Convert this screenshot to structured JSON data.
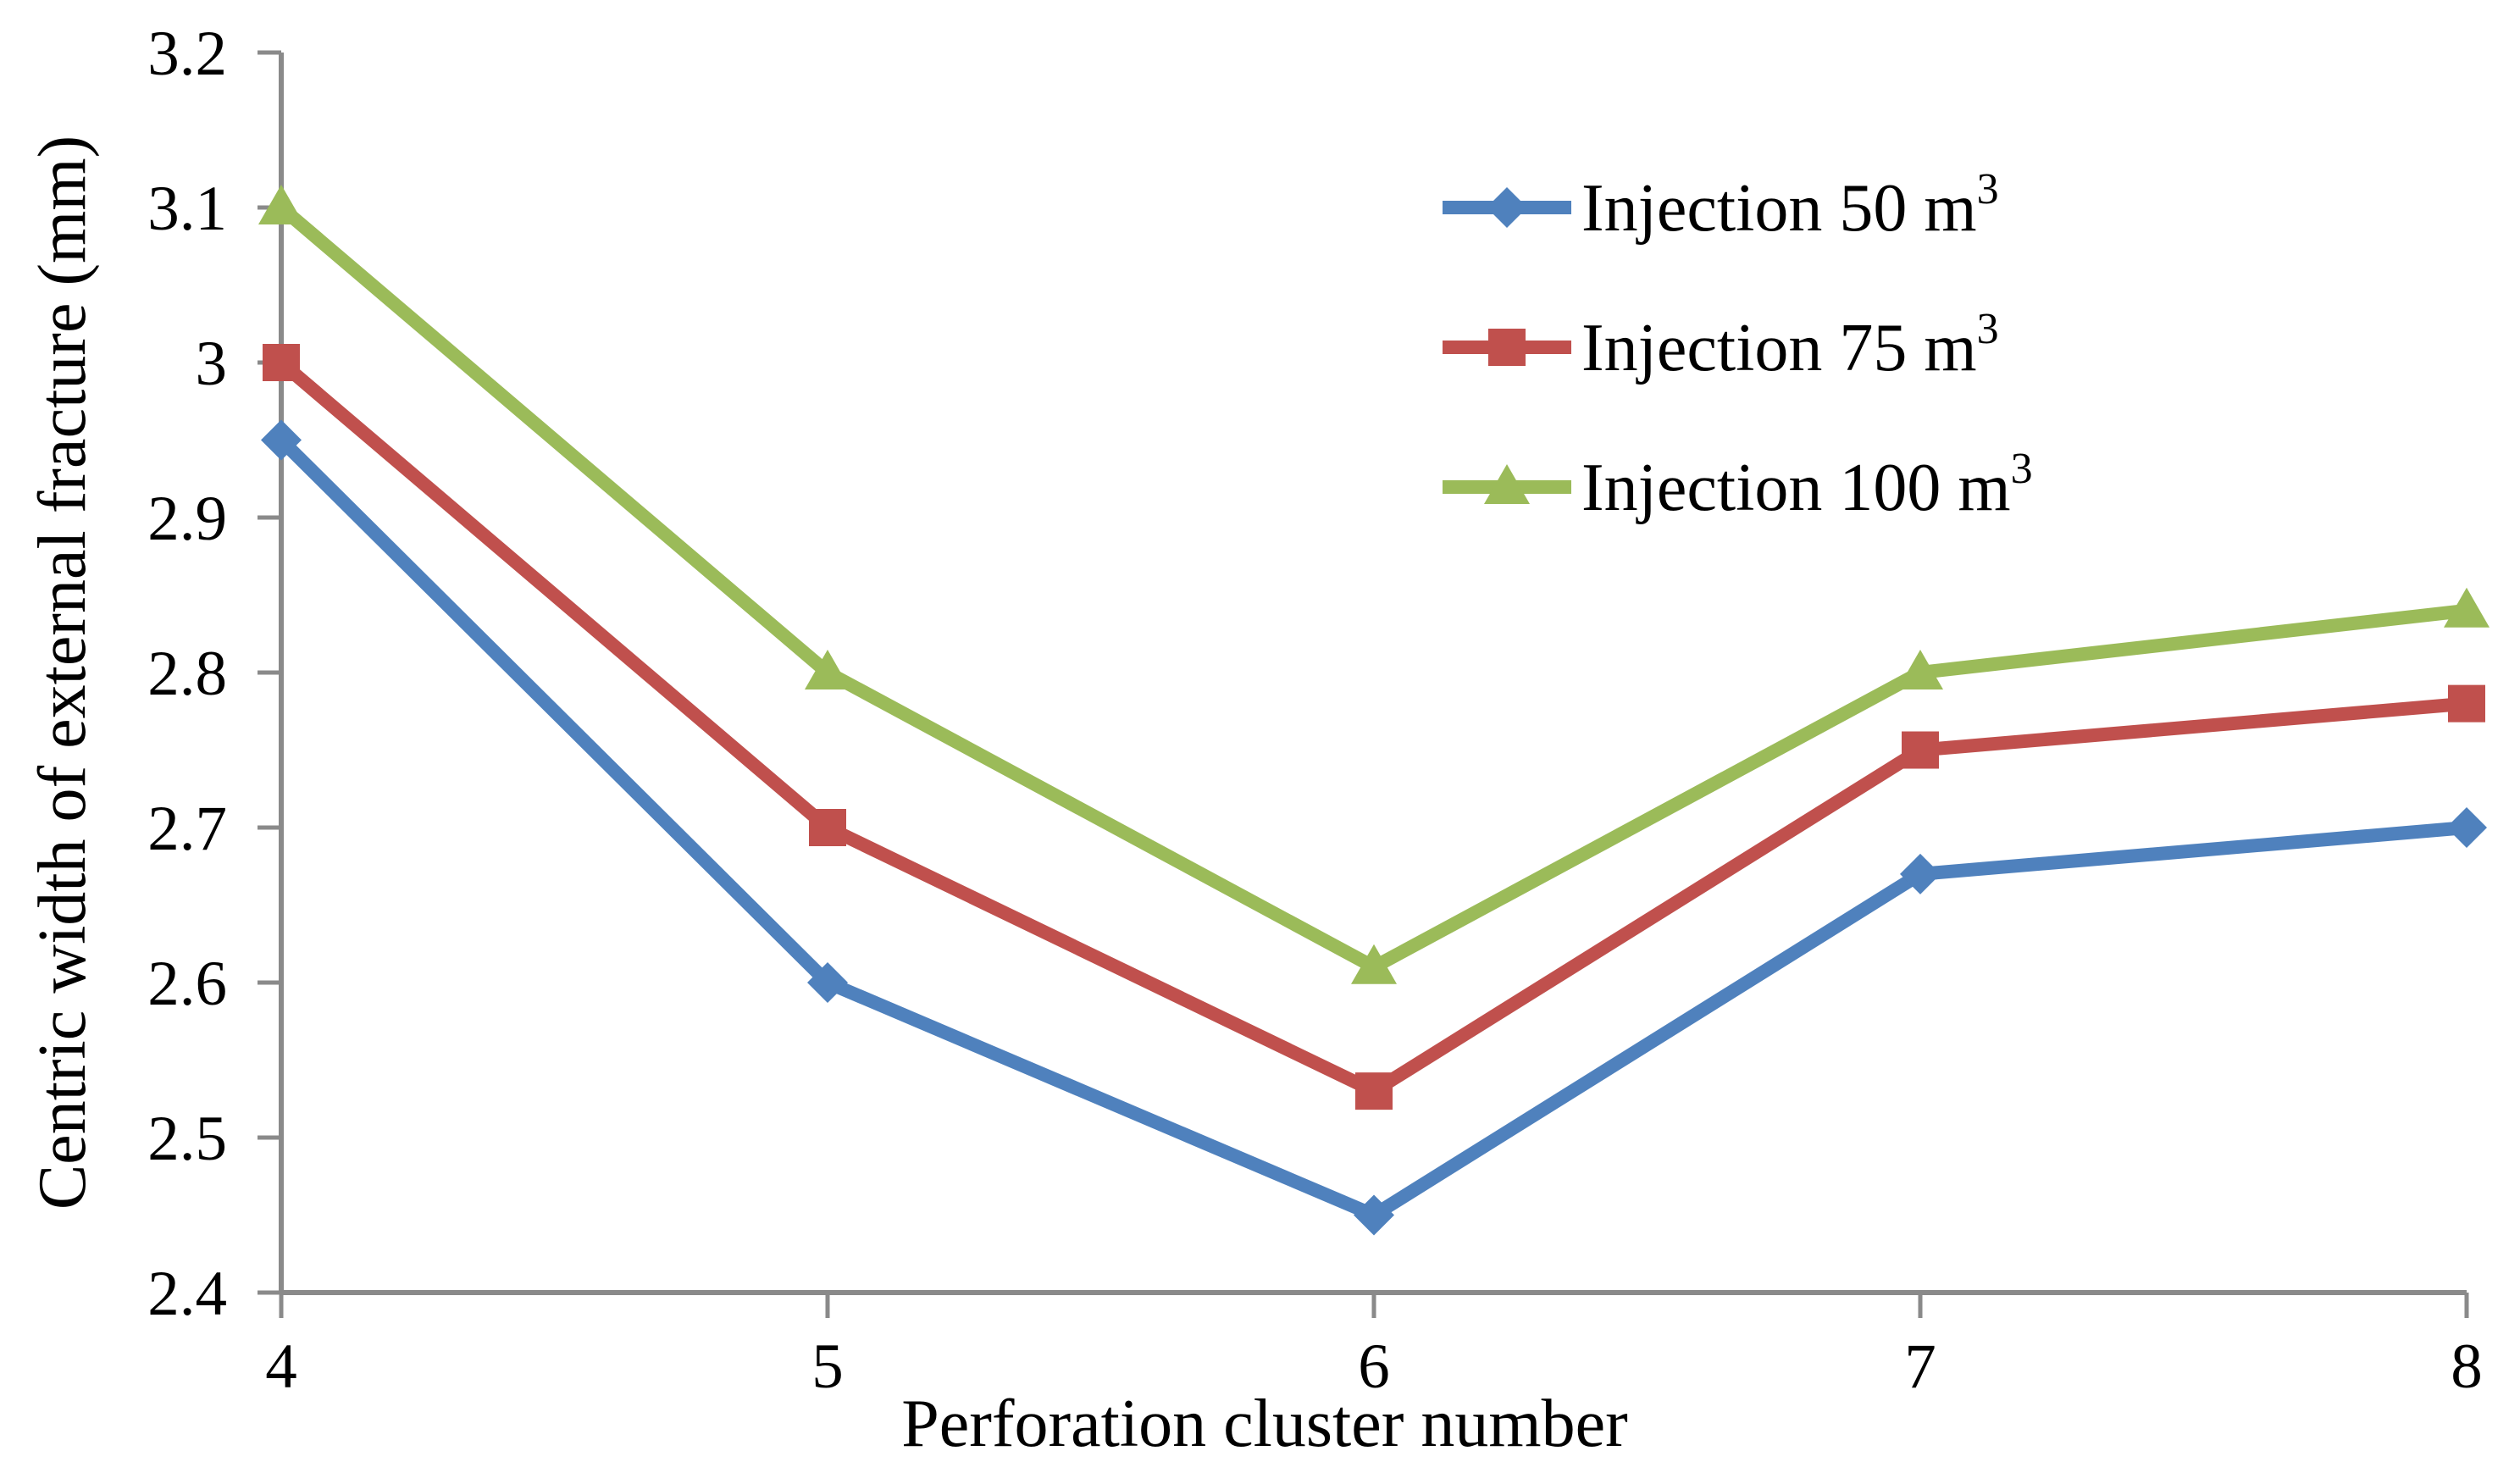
{
  "figure": {
    "background": "#ffffff",
    "axis_color": "#8a8a8a",
    "text_color": "#000000"
  },
  "chart_data": {
    "type": "line",
    "title": "",
    "xlabel": "Perforation cluster number",
    "ylabel": "Centric width of external fracture (mm)",
    "x": [
      4,
      5,
      6,
      7,
      8
    ],
    "xtick_labels": [
      "4",
      "5",
      "6",
      "7",
      "8"
    ],
    "ylim": [
      2.4,
      3.2
    ],
    "ytick_step": 0.1,
    "ytick_labels": [
      "2.4",
      "2.5",
      "2.6",
      "2.7",
      "2.8",
      "2.9",
      "3",
      "3.1",
      "3.2"
    ],
    "grid": false,
    "legend_position": "upper-right-inside",
    "series": [
      {
        "name": "Injection 50 m³",
        "color": "#4f81bd",
        "marker": "diamond",
        "values": [
          2.95,
          2.6,
          2.45,
          2.67,
          2.7
        ]
      },
      {
        "name": "Injection 75 m³",
        "color": "#c0504d",
        "marker": "square",
        "values": [
          3.0,
          2.7,
          2.53,
          2.75,
          2.78
        ]
      },
      {
        "name": "Injection 100 m³",
        "color": "#9bbb59",
        "marker": "triangle",
        "values": [
          3.1,
          2.8,
          2.61,
          2.8,
          2.84
        ]
      }
    ]
  }
}
